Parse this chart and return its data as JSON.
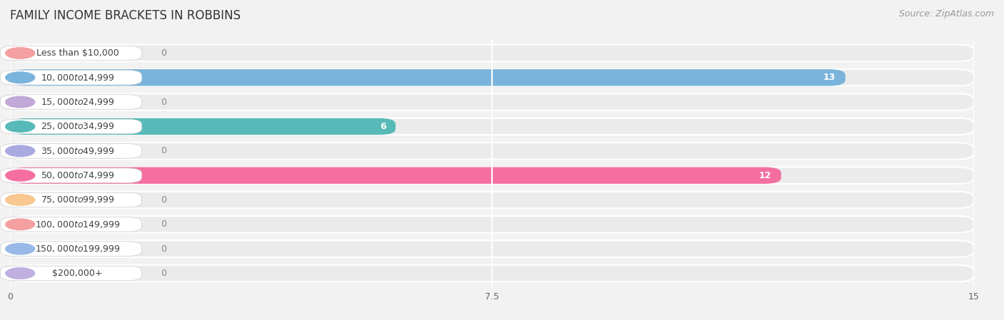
{
  "title": "FAMILY INCOME BRACKETS IN ROBBINS",
  "source": "Source: ZipAtlas.com",
  "categories": [
    "Less than $10,000",
    "$10,000 to $14,999",
    "$15,000 to $24,999",
    "$25,000 to $34,999",
    "$35,000 to $49,999",
    "$50,000 to $74,999",
    "$75,000 to $99,999",
    "$100,000 to $149,999",
    "$150,000 to $199,999",
    "$200,000+"
  ],
  "values": [
    0,
    13,
    0,
    6,
    0,
    12,
    0,
    0,
    0,
    0
  ],
  "bar_colors": [
    "#f4a0a0",
    "#7ab4dc",
    "#c0a8d8",
    "#58bab8",
    "#a8aae0",
    "#f46fa0",
    "#f8c890",
    "#f4a0a0",
    "#98b8e8",
    "#c0b0e0"
  ],
  "xlim": [
    0,
    15
  ],
  "xticks": [
    0,
    7.5,
    15
  ],
  "background_color": "#f2f2f2",
  "row_bg_color": "#ebebeb",
  "bar_bg_color": "#e2e2e2",
  "title_fontsize": 12,
  "source_fontsize": 9,
  "label_fontsize": 9
}
